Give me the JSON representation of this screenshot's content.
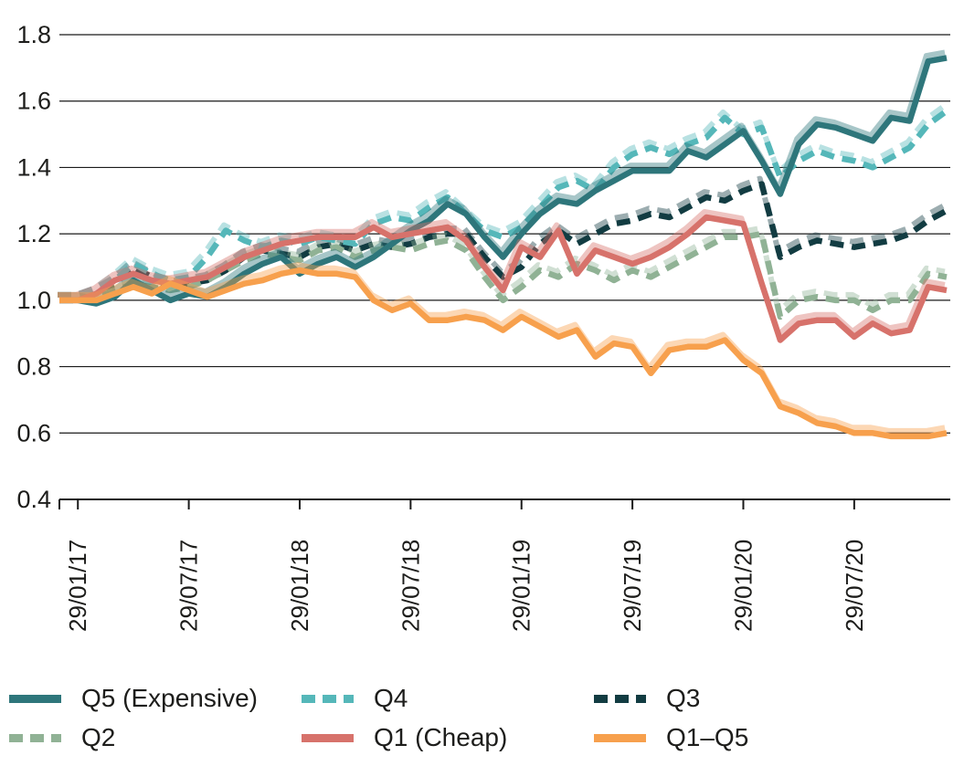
{
  "chart_data": {
    "type": "line",
    "title": "",
    "xlabel": "",
    "ylabel": "",
    "ylim": [
      0.4,
      1.8
    ],
    "y_ticks": [
      0.4,
      0.6,
      0.8,
      1.0,
      1.2,
      1.4,
      1.6,
      1.8
    ],
    "grid": "horizontal",
    "legend_position": "bottom",
    "x_tick_labels": [
      "29/01/17",
      "29/07/17",
      "29/01/18",
      "29/07/18",
      "29/01/19",
      "29/07/19",
      "29/01/20",
      "29/07/20"
    ],
    "x_tick_indices": [
      1,
      7,
      13,
      19,
      25,
      31,
      37,
      43
    ],
    "n_points": 49,
    "series": [
      {
        "name": "Q5 (Expensive)",
        "style": "solid",
        "color": "#2E767B",
        "values": [
          1.0,
          1.0,
          0.99,
          1.01,
          1.06,
          1.03,
          1.0,
          1.02,
          1.01,
          1.04,
          1.08,
          1.11,
          1.13,
          1.08,
          1.11,
          1.13,
          1.1,
          1.13,
          1.17,
          1.21,
          1.24,
          1.29,
          1.26,
          1.19,
          1.13,
          1.2,
          1.26,
          1.3,
          1.29,
          1.33,
          1.36,
          1.39,
          1.39,
          1.39,
          1.45,
          1.43,
          1.47,
          1.51,
          1.42,
          1.32,
          1.47,
          1.53,
          1.52,
          1.5,
          1.48,
          1.55,
          1.54,
          1.72,
          1.73
        ]
      },
      {
        "name": "Q4",
        "style": "dashed",
        "color": "#55B7B9",
        "values": [
          1.0,
          1.0,
          1.02,
          1.06,
          1.11,
          1.08,
          1.06,
          1.07,
          1.13,
          1.21,
          1.18,
          1.16,
          1.18,
          1.17,
          1.19,
          1.18,
          1.17,
          1.23,
          1.25,
          1.24,
          1.28,
          1.31,
          1.26,
          1.21,
          1.19,
          1.22,
          1.28,
          1.34,
          1.36,
          1.33,
          1.4,
          1.44,
          1.46,
          1.44,
          1.47,
          1.49,
          1.55,
          1.5,
          1.52,
          1.37,
          1.42,
          1.45,
          1.43,
          1.42,
          1.4,
          1.43,
          1.46,
          1.53,
          1.57
        ]
      },
      {
        "name": "Q3",
        "style": "dashed",
        "color": "#123C42",
        "values": [
          1.0,
          1.0,
          1.02,
          1.05,
          1.1,
          1.07,
          1.04,
          1.05,
          1.06,
          1.09,
          1.13,
          1.15,
          1.14,
          1.13,
          1.16,
          1.17,
          1.15,
          1.17,
          1.16,
          1.17,
          1.19,
          1.2,
          1.2,
          1.13,
          1.07,
          1.1,
          1.17,
          1.21,
          1.17,
          1.2,
          1.23,
          1.24,
          1.26,
          1.25,
          1.28,
          1.31,
          1.3,
          1.33,
          1.35,
          1.13,
          1.16,
          1.18,
          1.17,
          1.16,
          1.17,
          1.18,
          1.2,
          1.24,
          1.27
        ]
      },
      {
        "name": "Q2",
        "style": "dashed",
        "color": "#90B295",
        "values": [
          1.0,
          1.0,
          1.01,
          1.03,
          1.05,
          1.04,
          1.03,
          1.04,
          1.06,
          1.09,
          1.12,
          1.14,
          1.13,
          1.12,
          1.15,
          1.16,
          1.13,
          1.15,
          1.16,
          1.15,
          1.17,
          1.18,
          1.15,
          1.07,
          1.0,
          1.04,
          1.09,
          1.07,
          1.11,
          1.09,
          1.06,
          1.09,
          1.07,
          1.1,
          1.13,
          1.16,
          1.19,
          1.19,
          1.2,
          0.95,
          1.0,
          1.01,
          1.0,
          1.0,
          0.97,
          1.0,
          1.0,
          1.08,
          1.07
        ]
      },
      {
        "name": "Q1 (Cheap)",
        "style": "solid",
        "color": "#D7726B",
        "values": [
          1.0,
          1.0,
          1.02,
          1.06,
          1.08,
          1.06,
          1.05,
          1.06,
          1.07,
          1.1,
          1.13,
          1.15,
          1.17,
          1.18,
          1.19,
          1.19,
          1.19,
          1.22,
          1.19,
          1.2,
          1.21,
          1.22,
          1.18,
          1.1,
          1.03,
          1.16,
          1.13,
          1.21,
          1.08,
          1.15,
          1.13,
          1.11,
          1.13,
          1.16,
          1.2,
          1.25,
          1.24,
          1.23,
          1.05,
          0.88,
          0.93,
          0.94,
          0.94,
          0.89,
          0.93,
          0.9,
          0.91,
          1.04,
          1.03
        ]
      },
      {
        "name": "Q1–Q5",
        "style": "solid",
        "color": "#F7A04D",
        "values": [
          1.0,
          1.0,
          1.0,
          1.02,
          1.04,
          1.02,
          1.05,
          1.03,
          1.01,
          1.03,
          1.05,
          1.06,
          1.08,
          1.09,
          1.08,
          1.08,
          1.07,
          1.0,
          0.97,
          0.99,
          0.94,
          0.94,
          0.95,
          0.94,
          0.91,
          0.95,
          0.92,
          0.89,
          0.91,
          0.83,
          0.87,
          0.86,
          0.78,
          0.85,
          0.86,
          0.86,
          0.88,
          0.82,
          0.78,
          0.68,
          0.66,
          0.63,
          0.62,
          0.6,
          0.6,
          0.59,
          0.59,
          0.59,
          0.6
        ]
      }
    ],
    "draw_order": [
      2,
      3,
      1,
      0,
      4,
      5
    ],
    "axis_color": "#1a1a1a",
    "text_color": "#1d1d1b"
  },
  "legend": {
    "rows": [
      [
        0,
        1,
        2
      ],
      [
        3,
        4,
        5
      ]
    ]
  }
}
